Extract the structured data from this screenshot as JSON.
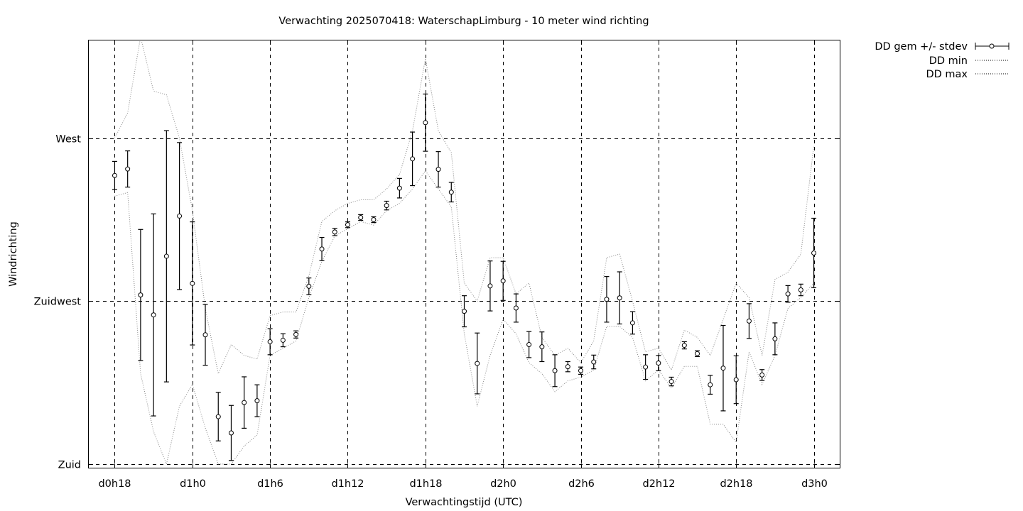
{
  "chart_data": {
    "type": "line",
    "title": "Verwachting 2025070418: WaterschapLimburg - 10 meter wind richting",
    "xlabel": "Verwachtingstijd (UTC)",
    "ylabel": "Windrichting",
    "x_tick_labels": [
      "d0h18",
      "d1h0",
      "d1h6",
      "d1h12",
      "d1h18",
      "d2h0",
      "d2h6",
      "d2h12",
      "d2h18",
      "d3h0"
    ],
    "x_tick_hours": [
      18,
      24,
      30,
      36,
      42,
      48,
      54,
      60,
      66,
      72
    ],
    "xlim": [
      16,
      74
    ],
    "y_ticks": [
      {
        "label": "Zuid",
        "value": 180
      },
      {
        "label": "Zuidwest",
        "value": 225
      },
      {
        "label": "West",
        "value": 270
      }
    ],
    "ylim": [
      179,
      297
    ],
    "grid": true,
    "legend_position": "outside top-right",
    "series": [
      {
        "name": "DD gem +/- stdev",
        "style": "errorbars",
        "x": [
          18,
          19,
          20,
          21,
          22,
          23,
          24,
          25,
          26,
          27,
          28,
          29,
          30,
          31,
          32,
          33,
          34,
          35,
          36,
          37,
          38,
          39,
          40,
          41,
          42,
          43,
          44,
          45,
          46,
          47,
          48,
          49,
          50,
          51,
          52,
          53,
          54,
          55,
          56,
          57,
          58,
          59,
          60,
          61,
          62,
          63,
          64,
          65,
          66,
          67,
          68,
          69,
          70,
          71,
          72
        ],
        "mean": [
          259.7,
          261.5,
          226.7,
          221.2,
          237.4,
          248.5,
          229.9,
          215.7,
          193.1,
          188.6,
          197.0,
          197.5,
          213.8,
          214.2,
          215.8,
          229.1,
          239.4,
          244.1,
          246.1,
          248.1,
          247.5,
          251.4,
          256.2,
          264.3,
          274.3,
          261.4,
          255.1,
          222.2,
          207.8,
          229.2,
          230.6,
          223.1,
          213.0,
          212.4,
          205.8,
          206.9,
          205.8,
          208.2,
          225.5,
          225.9,
          219.0,
          206.8,
          207.9,
          202.8,
          212.8,
          210.5,
          201.9,
          206.5,
          203.3,
          219.5,
          204.6,
          214.6,
          227.0,
          228.1,
          238.3
        ],
        "stdev": [
          3.9,
          5.0,
          18.1,
          27.9,
          34.7,
          20.3,
          17.0,
          8.4,
          6.7,
          7.6,
          7.1,
          4.4,
          3.6,
          1.8,
          1.0,
          2.3,
          3.2,
          1.0,
          0.8,
          0.8,
          0.8,
          1.2,
          2.7,
          7.4,
          7.9,
          4.9,
          2.7,
          4.3,
          8.4,
          6.9,
          5.4,
          3.9,
          3.6,
          4.1,
          4.4,
          1.4,
          1.0,
          1.9,
          6.3,
          7.2,
          3.1,
          3.4,
          2.1,
          1.2,
          1.0,
          0.8,
          2.6,
          11.8,
          6.6,
          4.8,
          1.5,
          4.4,
          2.3,
          1.6,
          9.6
        ]
      },
      {
        "name": "DD min",
        "style": "dotted",
        "x": [
          18,
          19,
          20,
          21,
          22,
          23,
          24,
          25,
          26,
          27,
          28,
          29,
          30,
          31,
          32,
          33,
          34,
          35,
          36,
          37,
          38,
          39,
          40,
          41,
          42,
          43,
          44,
          45,
          46,
          47,
          48,
          49,
          50,
          51,
          52,
          53,
          54,
          55,
          56,
          57,
          58,
          59,
          60,
          61,
          62,
          63,
          64,
          65,
          66,
          67,
          68,
          69,
          70,
          71,
          72
        ],
        "values": [
          254,
          255,
          205,
          189,
          180,
          196,
          202,
          190,
          180,
          180,
          185,
          188,
          210,
          212,
          214,
          226,
          236,
          243,
          245,
          247,
          246,
          250,
          252,
          256,
          261,
          256,
          251,
          216,
          196,
          210,
          220,
          216,
          208,
          205,
          200,
          203,
          204,
          206,
          218,
          218,
          215,
          203,
          206,
          201,
          207,
          207,
          191,
          191,
          186,
          211,
          202,
          210,
          223,
          226,
          230
        ]
      },
      {
        "name": "DD max",
        "style": "dotted",
        "x": [
          18,
          19,
          20,
          21,
          22,
          23,
          24,
          25,
          26,
          27,
          28,
          29,
          30,
          31,
          32,
          33,
          34,
          35,
          36,
          37,
          38,
          39,
          40,
          41,
          42,
          43,
          44,
          45,
          46,
          47,
          48,
          49,
          50,
          51,
          52,
          53,
          54,
          55,
          56,
          57,
          58,
          59,
          60,
          61,
          62,
          63,
          64,
          65,
          66,
          67,
          68,
          69,
          70,
          71,
          72
        ],
        "values": [
          270,
          277,
          298,
          283,
          282,
          270,
          250,
          223,
          205,
          213,
          210,
          209,
          221,
          222,
          222,
          232,
          247,
          250,
          252,
          253,
          253,
          256,
          260,
          272,
          292,
          272,
          266,
          230,
          225,
          237,
          237,
          227,
          230,
          215,
          210,
          212,
          208,
          214,
          237,
          238,
          225,
          211,
          212,
          206,
          217,
          215,
          210,
          220,
          230,
          226,
          210,
          231,
          233,
          238,
          268
        ]
      }
    ]
  }
}
